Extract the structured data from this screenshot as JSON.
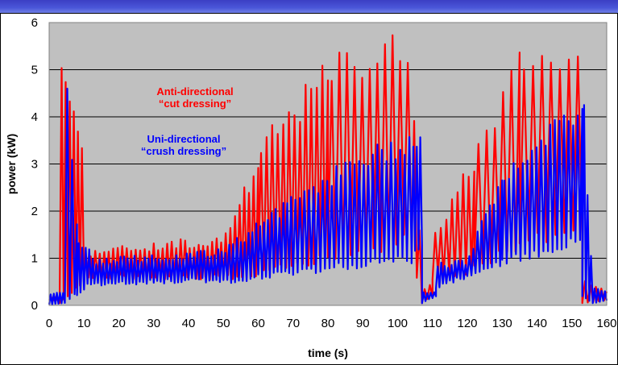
{
  "chart_data": {
    "type": "line",
    "title": "",
    "xlabel": "time (s)",
    "ylabel": "power (kW)",
    "xlim": [
      0,
      160
    ],
    "ylim": [
      0,
      6
    ],
    "x_ticks": [
      "0",
      "10",
      "20",
      "30",
      "40",
      "50",
      "60",
      "70",
      "80",
      "90",
      "100",
      "110",
      "120",
      "130",
      "140",
      "150",
      "160"
    ],
    "y_ticks": [
      "0",
      "1",
      "2",
      "3",
      "4",
      "5",
      "6"
    ],
    "grid": "horizontal",
    "plot_background": "#c0c0c0",
    "annotations": [
      {
        "series": "anti",
        "lines": [
          "Anti-directional",
          "“cut dressing”"
        ],
        "color": "#ff0000"
      },
      {
        "series": "uni",
        "lines": [
          "Uni-directional",
          "“crush dressing”"
        ],
        "color": "#0000ff"
      }
    ],
    "series": [
      {
        "key": "anti",
        "color": "#ff0000",
        "bursts": [
          {
            "x": [
              0,
              2.5
            ],
            "min": [
              0.1,
              0.1
            ],
            "max": [
              0.2,
              0.2
            ],
            "period": 1.2
          },
          {
            "x": [
              3,
              10
            ],
            "min": [
              0.05,
              0.5
            ],
            "max": [
              6,
              3.6
            ],
            "period": 1.2
          },
          {
            "x": [
              10,
              50
            ],
            "min": [
              0.6,
              0.6
            ],
            "max": [
              1.2,
              1.5
            ],
            "period": 1.3
          },
          {
            "x": [
              50,
              60
            ],
            "min": [
              0.6,
              0.6
            ],
            "max": [
              1.6,
              3.2
            ],
            "period": 1.3
          },
          {
            "x": [
              60,
              80
            ],
            "min": [
              0.7,
              1.0
            ],
            "max": [
              3.5,
              5.3
            ],
            "period": 1.6
          },
          {
            "x": [
              80,
              104
            ],
            "min": [
              1.0,
              1.4
            ],
            "max": [
              5.4,
              6
            ],
            "period": 2.2
          },
          {
            "x": [
              104,
              107
            ],
            "min": [
              1.2,
              0.05
            ],
            "max": [
              5.8,
              0.3
            ],
            "period": 1.5
          },
          {
            "x": [
              107,
              110
            ],
            "min": [
              0.05,
              0.2
            ],
            "max": [
              0.3,
              0.5
            ],
            "period": 1.5
          },
          {
            "x": [
              110,
              122
            ],
            "min": [
              0.6,
              0.7
            ],
            "max": [
              1.5,
              3.3
            ],
            "period": 1.6
          },
          {
            "x": [
              122,
              135
            ],
            "min": [
              0.8,
              1.3
            ],
            "max": [
              3.4,
              5.5
            ],
            "period": 2.4
          },
          {
            "x": [
              135,
              153
            ],
            "min": [
              1.4,
              1.6
            ],
            "max": [
              5.7,
              5.6
            ],
            "period": 2.6
          },
          {
            "x": [
              153,
              160
            ],
            "min": [
              0.05,
              0.1
            ],
            "max": [
              0.6,
              0.3
            ],
            "period": 1.6
          }
        ]
      },
      {
        "key": "uni",
        "color": "#0000ff",
        "bursts": [
          {
            "x": [
              0,
              4
            ],
            "min": [
              0.02,
              0.05
            ],
            "max": [
              0.25,
              0.3
            ],
            "period": 0.9
          },
          {
            "x": [
              4.5,
              8
            ],
            "min": [
              0.05,
              0.3
            ],
            "max": [
              6,
              2.0
            ],
            "period": 1.4
          },
          {
            "x": [
              8,
              12
            ],
            "min": [
              0.2,
              0.5
            ],
            "max": [
              1.4,
              1.3
            ],
            "period": 1.0
          },
          {
            "x": [
              12,
              50
            ],
            "min": [
              0.45,
              0.55
            ],
            "max": [
              1.0,
              1.2
            ],
            "period": 1.0
          },
          {
            "x": [
              50,
              70
            ],
            "min": [
              0.5,
              0.7
            ],
            "max": [
              1.2,
              2.4
            ],
            "period": 1.1
          },
          {
            "x": [
              70,
              104
            ],
            "min": [
              0.7,
              1.0
            ],
            "max": [
              2.5,
              3.8
            ],
            "period": 1.3
          },
          {
            "x": [
              104,
              107
            ],
            "min": [
              0.9,
              1.4
            ],
            "max": [
              3.9,
              3.5
            ],
            "period": 1.0
          },
          {
            "x": [
              107,
              111
            ],
            "min": [
              0.05,
              0.2
            ],
            "max": [
              0.3,
              0.3
            ],
            "period": 1.0
          },
          {
            "x": [
              111,
              120
            ],
            "min": [
              0.4,
              0.6
            ],
            "max": [
              0.9,
              1.0
            ],
            "period": 1.0
          },
          {
            "x": [
              120,
              130
            ],
            "min": [
              0.6,
              0.9
            ],
            "max": [
              1.1,
              2.8
            ],
            "period": 1.2
          },
          {
            "x": [
              130,
              153
            ],
            "min": [
              0.9,
              1.4
            ],
            "max": [
              2.9,
              4.5
            ],
            "period": 1.3
          },
          {
            "x": [
              153,
              156
            ],
            "min": [
              0.2,
              0.05
            ],
            "max": [
              5.1,
              0.4
            ],
            "period": 1.0
          },
          {
            "x": [
              156,
              160
            ],
            "min": [
              0.05,
              0.1
            ],
            "max": [
              0.4,
              0.3
            ],
            "period": 1.0
          }
        ]
      }
    ]
  }
}
